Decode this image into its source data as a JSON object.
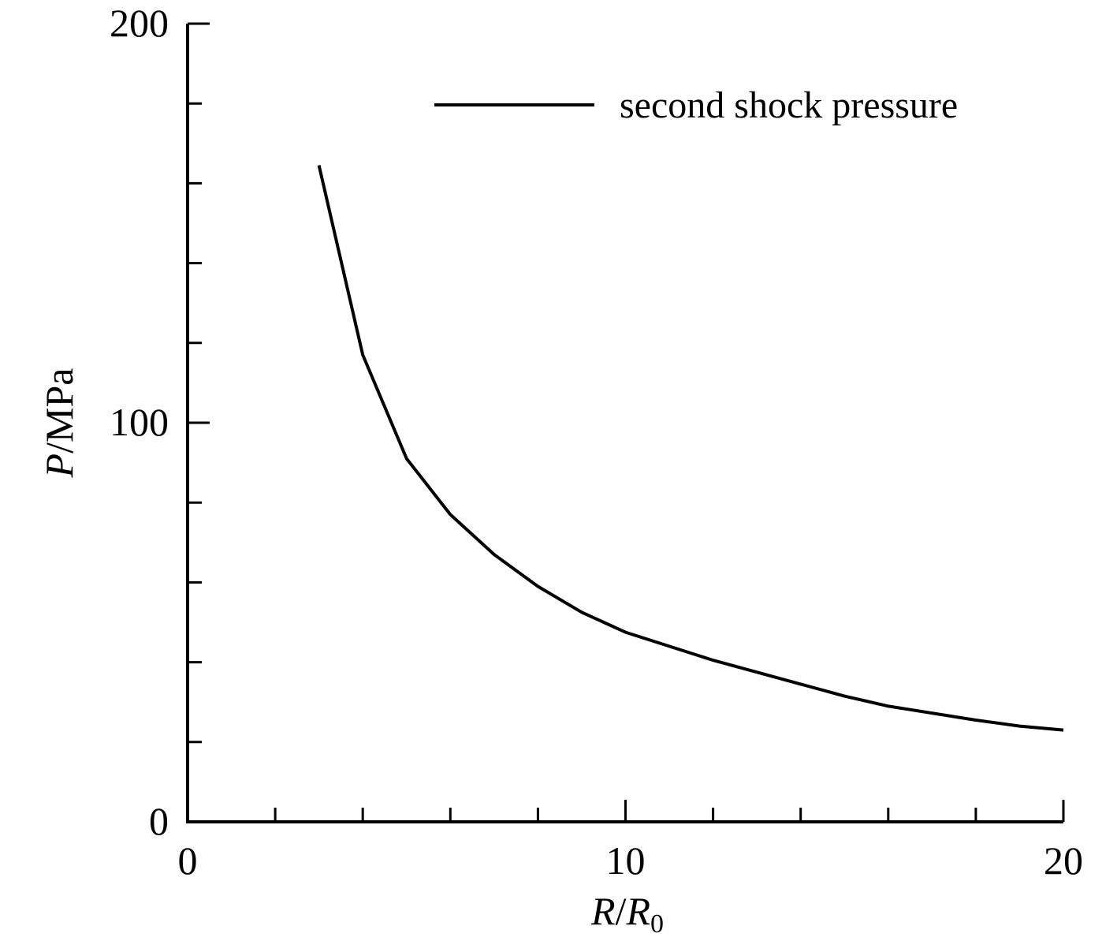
{
  "chart_data": {
    "type": "line",
    "x_axis": {
      "label_var": "R",
      "label_sep": "/",
      "label_var2": "R",
      "label_sub": "0",
      "range": [
        0,
        20
      ],
      "major_ticks": [
        0,
        10,
        20
      ],
      "tick_labels": [
        "0",
        "10",
        "20"
      ],
      "minor_tick_step": 2
    },
    "y_axis": {
      "label_var": "P",
      "label_unit": "/MPa",
      "range": [
        0,
        200
      ],
      "major_ticks": [
        0,
        100,
        200
      ],
      "tick_labels": [
        "0",
        "100",
        "200"
      ],
      "minor_tick_step": 20
    },
    "grid": false,
    "legend_position": "top-right",
    "line_color": "#000000",
    "series": [
      {
        "name": "second shock pressure",
        "x": [
          3,
          4,
          5,
          6,
          7,
          8,
          9,
          10,
          12,
          14,
          15,
          16,
          18,
          19,
          20
        ],
        "y": [
          164.5,
          117,
          91,
          77,
          67,
          59,
          52.5,
          47.5,
          40.5,
          34.5,
          31.5,
          29,
          25.5,
          24,
          23
        ]
      }
    ]
  }
}
